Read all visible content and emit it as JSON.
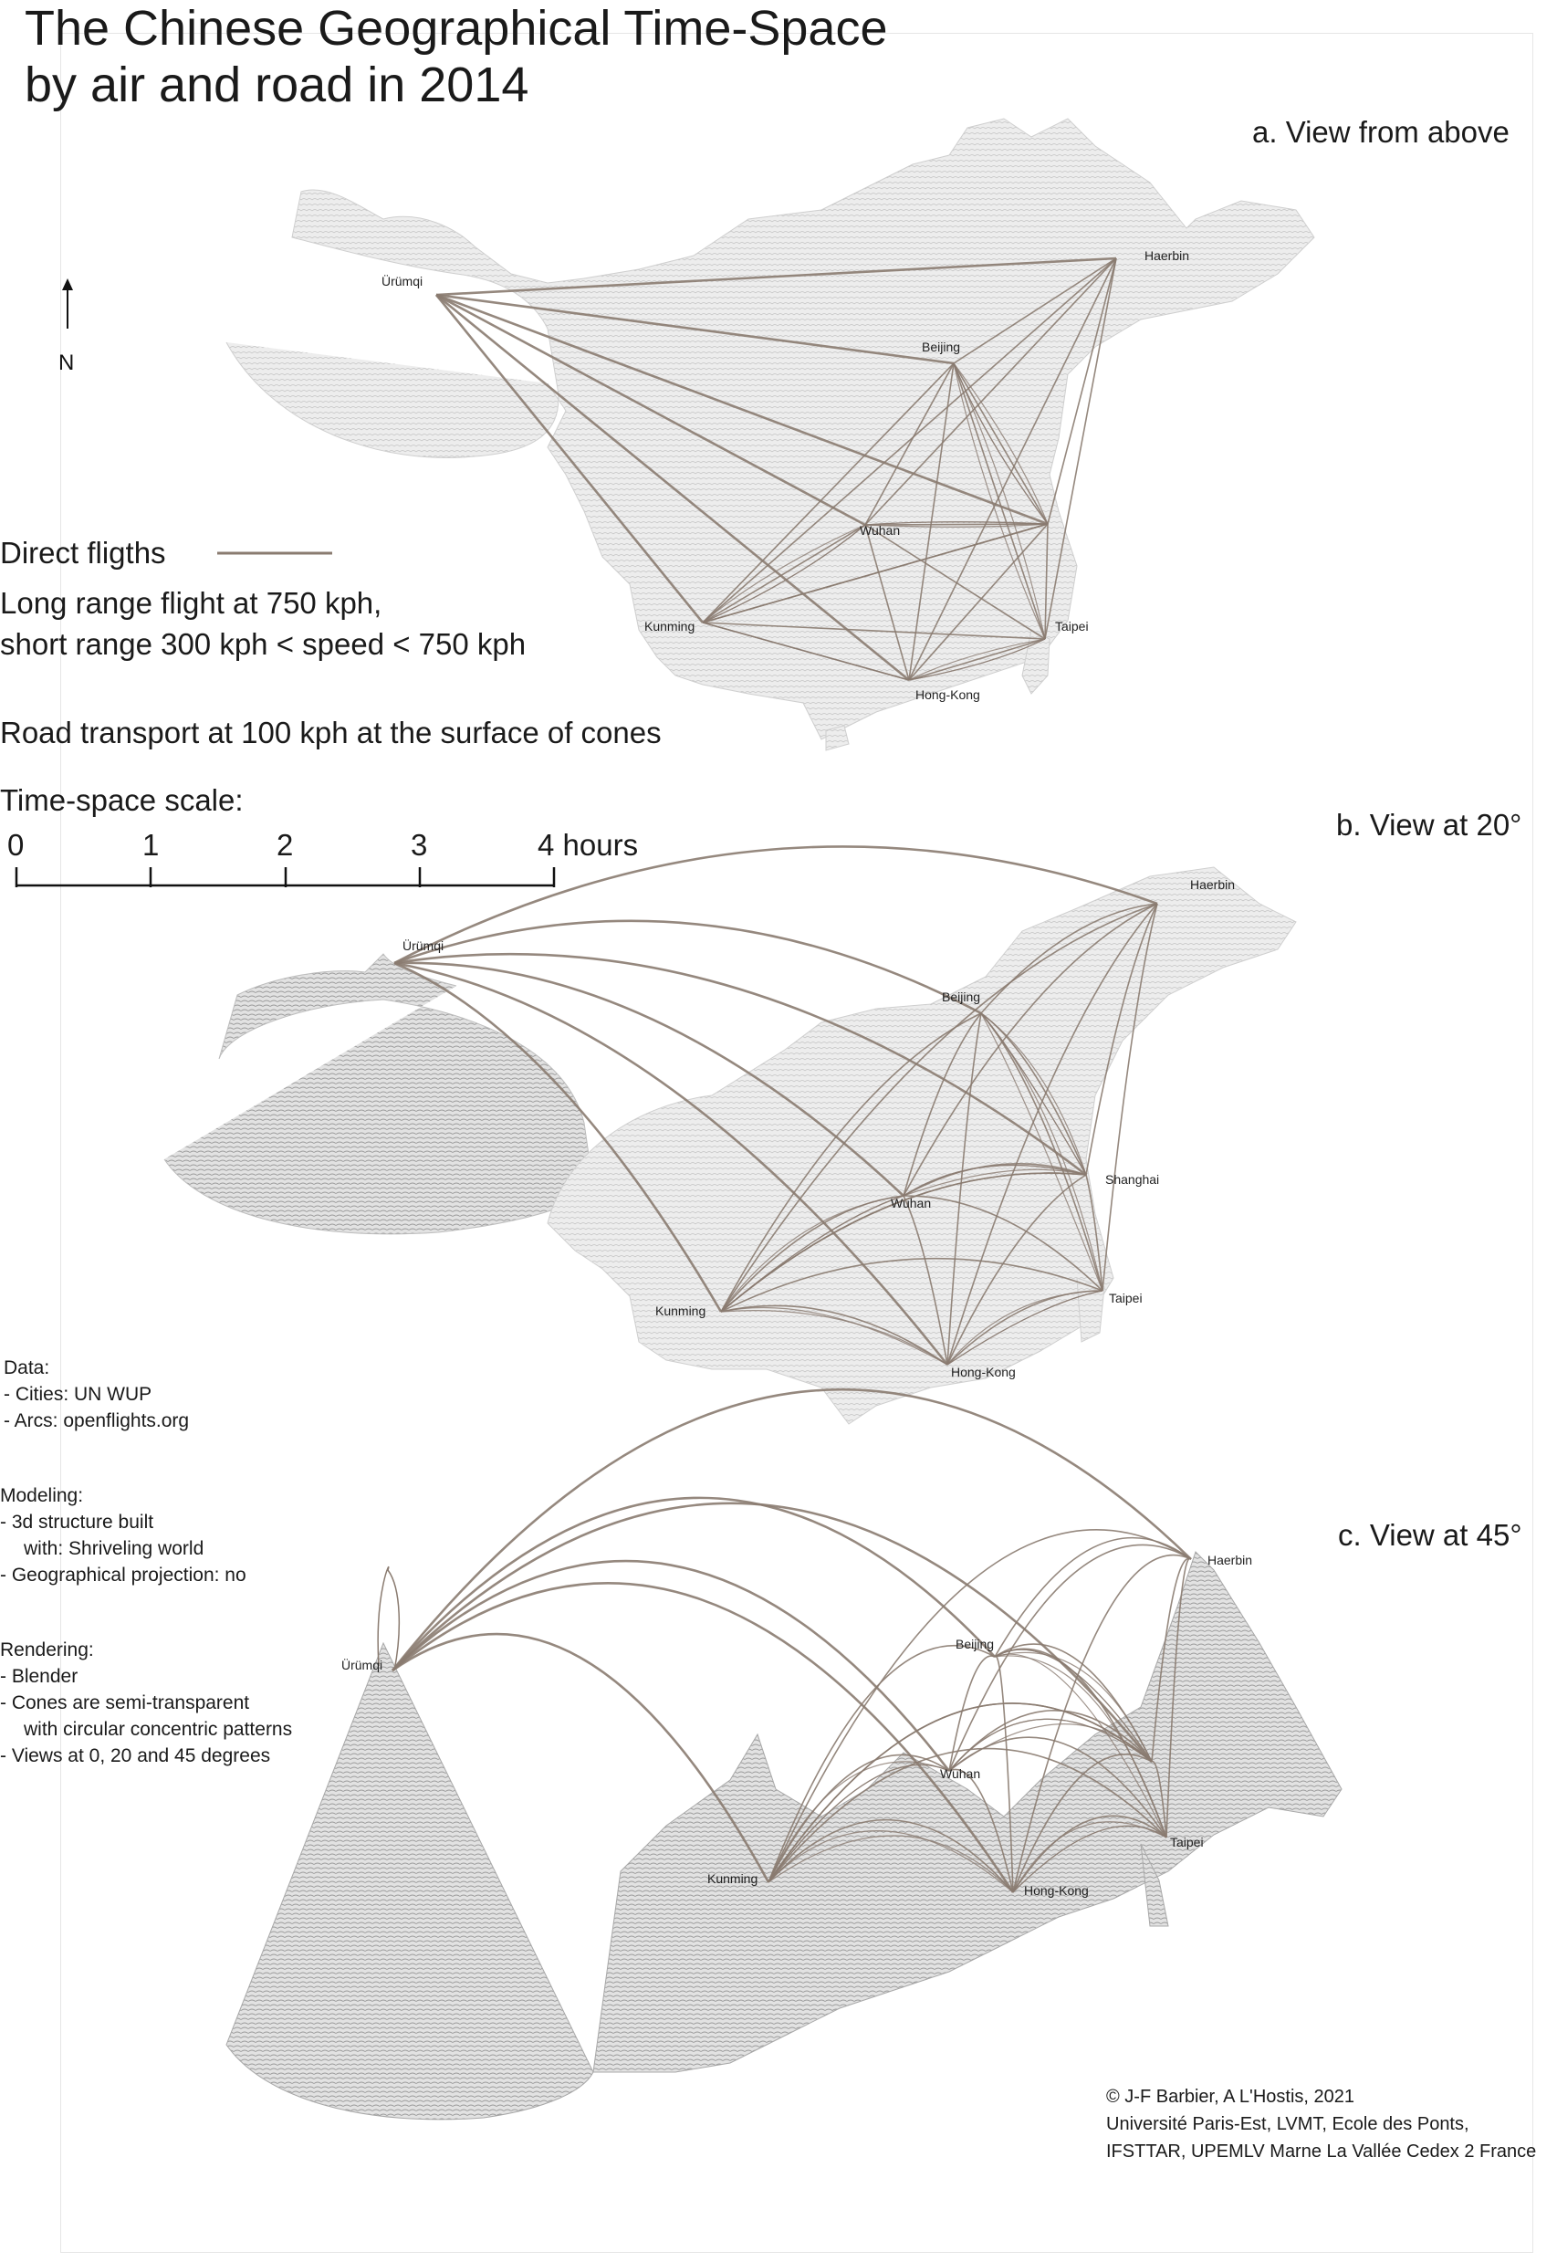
{
  "title": {
    "line1": "The Chinese Geographical Time-Space",
    "line2": "by air and road in 2014"
  },
  "north_arrow": {
    "label": "N"
  },
  "views": {
    "a": "a. View from above",
    "b": "b. View at 20°",
    "c": "c. View at 45°"
  },
  "legend": {
    "flights_label": "Direct fligths",
    "flight_speed_line1": "Long range flight at 750 kph,",
    "flight_speed_line2": "short range 300 kph < speed < 750 kph",
    "road": "Road transport at 100 kph at the surface of cones",
    "scale_title": "Time-space scale:",
    "scale_ticks": [
      "0",
      "1",
      "2",
      "3",
      "4 hours"
    ],
    "arc_color": "#8a7b70",
    "terrain_color": "#bdbdbd"
  },
  "cities": {
    "urumqi": "Ürümqi",
    "beijing": "Beijing",
    "harbin": "Haerbin",
    "wuhan": "Wuhan",
    "shanghai": "Shanghai",
    "kunming": "Kunming",
    "taipei": "Taipei",
    "hongkong": "Hong-Kong"
  },
  "notes": {
    "data_title": "Data:",
    "data_items": [
      "- Cities: UN WUP",
      "- Arcs: openflights.org"
    ],
    "modeling_title": "Modeling:",
    "modeling_items": [
      "- 3d structure built",
      "with: Shriveling world",
      "- Geographical projection: no"
    ],
    "rendering_title": "Rendering:",
    "rendering_items": [
      "- Blender",
      "- Cones are semi-transparent",
      "with circular concentric patterns",
      "- Views at 0, 20 and 45 degrees"
    ]
  },
  "credits": {
    "line1": "© J-F Barbier, A L'Hostis, 2021",
    "line2": "Université Paris-Est, LVMT, Ecole des Ponts,",
    "line3": "IFSTTAR, UPEMLV Marne La Vallée Cedex 2 France"
  }
}
